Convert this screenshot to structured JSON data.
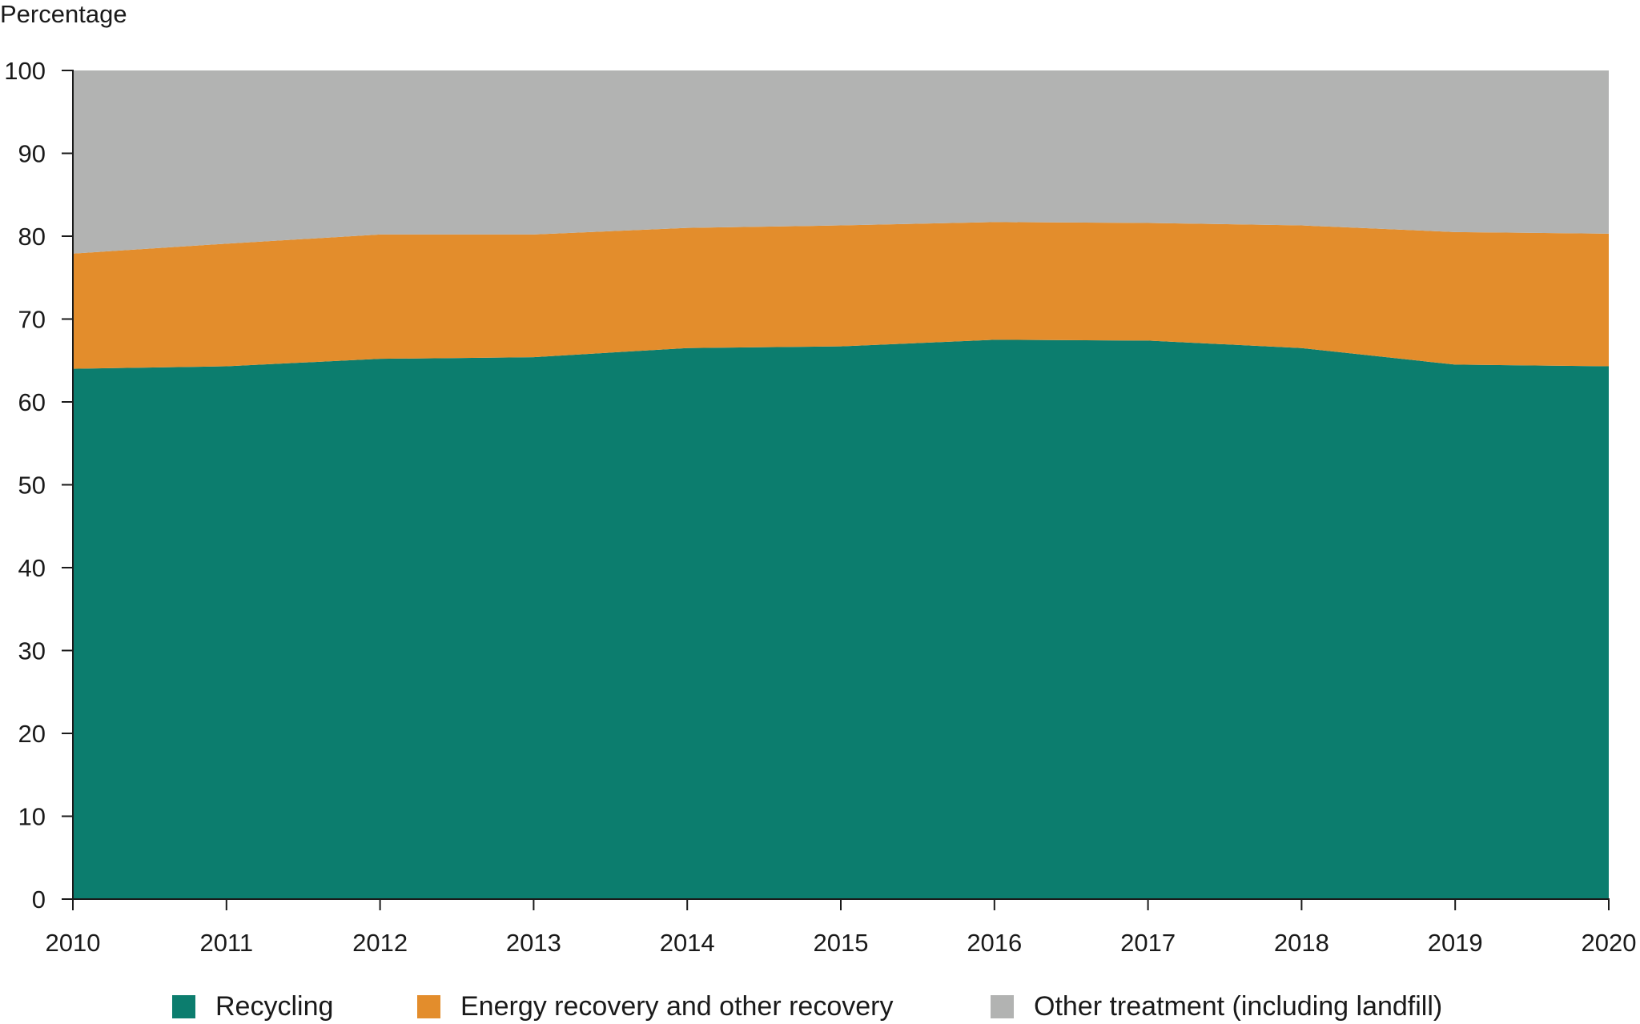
{
  "chart_data": {
    "type": "area",
    "stacked": true,
    "ylabel": "Percentage",
    "xlabel": "",
    "title": "",
    "x": [
      2010,
      2011,
      2012,
      2013,
      2014,
      2015,
      2016,
      2017,
      2018,
      2019,
      2020
    ],
    "ylim": [
      0,
      100
    ],
    "yticks": [
      0,
      10,
      20,
      30,
      40,
      50,
      60,
      70,
      80,
      90,
      100
    ],
    "grid": false,
    "legend_position": "bottom",
    "series": [
      {
        "name": "Recycling",
        "color": "#0c7d6e",
        "values": [
          64.0,
          64.3,
          65.2,
          65.4,
          66.5,
          66.7,
          67.5,
          67.4,
          66.5,
          64.5,
          64.3
        ]
      },
      {
        "name": "Energy recovery and other recovery",
        "color": "#e38d2c",
        "values": [
          13.9,
          14.8,
          15.0,
          14.8,
          14.5,
          14.6,
          14.2,
          14.2,
          14.8,
          16.0,
          16.0
        ]
      },
      {
        "name": "Other treatment (including landfill)",
        "color": "#b2b3b2",
        "values": [
          22.1,
          20.9,
          19.8,
          19.8,
          19.0,
          18.7,
          18.3,
          18.4,
          18.7,
          19.5,
          19.7
        ]
      }
    ]
  }
}
